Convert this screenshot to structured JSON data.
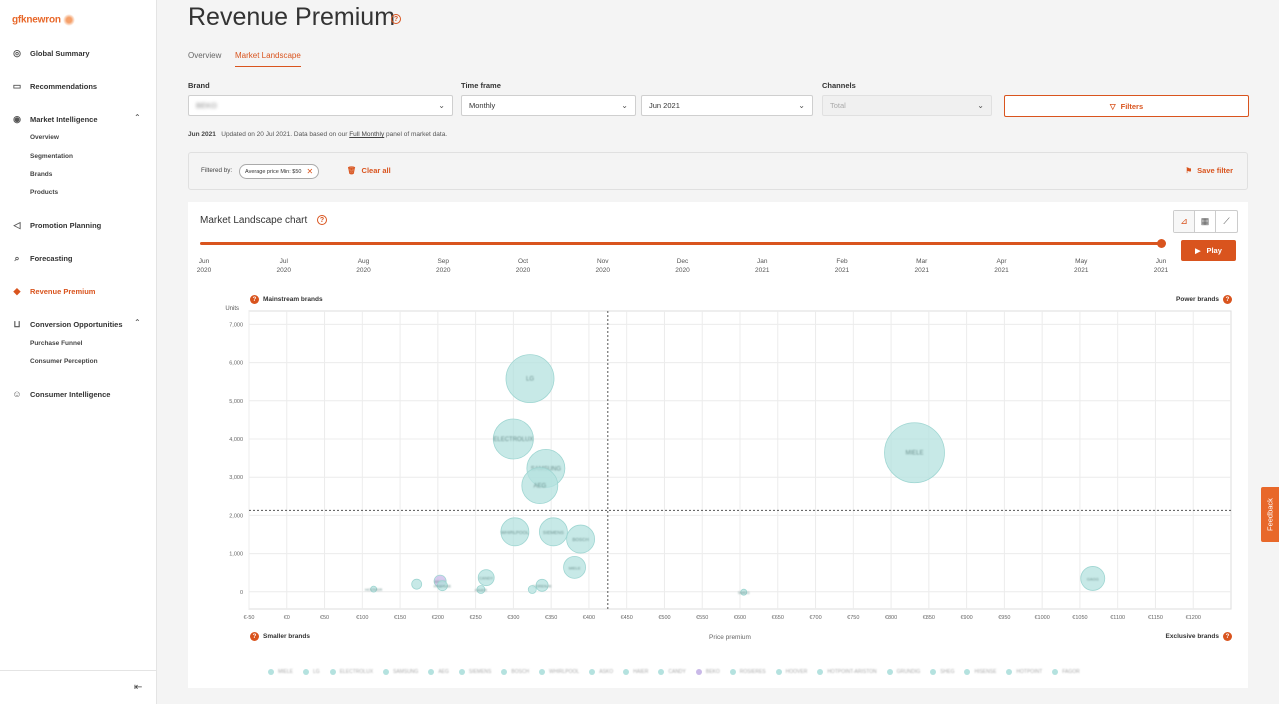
{
  "app": {
    "logo": "gfknewron"
  },
  "sidebar": {
    "items": [
      {
        "label": "Global Summary",
        "icon": "globe-icon"
      },
      {
        "label": "Recommendations",
        "icon": "recommend-icon"
      },
      {
        "label": "Market Intelligence",
        "icon": "target-icon",
        "expanded": true,
        "children": [
          "Overview",
          "Segmentation",
          "Brands",
          "Products"
        ]
      },
      {
        "label": "Promotion Planning",
        "icon": "megaphone-icon"
      },
      {
        "label": "Forecasting",
        "icon": "forecast-icon"
      },
      {
        "label": "Revenue Premium",
        "icon": "diamond-icon",
        "active": true
      },
      {
        "label": "Conversion Opportunities",
        "icon": "cart-icon",
        "expanded": true,
        "children": [
          "Purchase Funnel",
          "Consumer Perception"
        ]
      },
      {
        "label": "Consumer Intelligence",
        "icon": "head-icon"
      }
    ],
    "collapse_icon": "collapse-left-icon"
  },
  "page": {
    "title": "Revenue Premium",
    "tabs": [
      {
        "label": "Overview",
        "active": false
      },
      {
        "label": "Market Landscape",
        "active": true
      }
    ]
  },
  "filters": {
    "brand_label": "Brand",
    "brand_value": "BEKO",
    "timeframe_label": "Time frame",
    "timeframe_value": "Monthly",
    "period_value": "Jun 2021",
    "channels_label": "Channels",
    "channels_value": "Total",
    "filters_button": "Filters"
  },
  "info": {
    "period": "Jun 2021",
    "text_before": "Updated on 20 Jul 2021. Data based on our",
    "link": "Full Monthly",
    "text_after": "panel of market data."
  },
  "filter_bar": {
    "label": "Filtered by:",
    "chip": "Average price Min: $50",
    "clear_all": "Clear all",
    "save_filter": "Save filter"
  },
  "chart_card": {
    "title": "Market Landscape chart",
    "play_label": "Play",
    "timeline_ticks": [
      [
        "Jun",
        "2020"
      ],
      [
        "Jul",
        "2020"
      ],
      [
        "Aug",
        "2020"
      ],
      [
        "Sep",
        "2020"
      ],
      [
        "Oct",
        "2020"
      ],
      [
        "Nov",
        "2020"
      ],
      [
        "Dec",
        "2020"
      ],
      [
        "Jan",
        "2021"
      ],
      [
        "Feb",
        "2021"
      ],
      [
        "Mar",
        "2021"
      ],
      [
        "Apr",
        "2021"
      ],
      [
        "May",
        "2021"
      ],
      [
        "Jun",
        "2021"
      ]
    ],
    "quadrants": {
      "top_left": "Mainstream brands",
      "top_right": "Power brands",
      "bottom_left": "Smaller brands",
      "bottom_right": "Exclusive brands"
    }
  },
  "chart_data": {
    "type": "scatter",
    "xlabel": "Price premium",
    "ylabel": "Units",
    "x_ticks": [
      "€-50",
      "€0",
      "€50",
      "€100",
      "€150",
      "€200",
      "€250",
      "€300",
      "€350",
      "€400",
      "€450",
      "€500",
      "€550",
      "€600",
      "€650",
      "€700",
      "€750",
      "€800",
      "€850",
      "€900",
      "€950",
      "€1000",
      "€1050",
      "€1100",
      "€1150",
      "€1200"
    ],
    "y_ticks": [
      "0",
      "1,000",
      "2,000",
      "3,000",
      "4,000",
      "5,000",
      "6,000",
      "7,000"
    ],
    "xlim": [
      -50,
      1250
    ],
    "ylim": [
      -450,
      7350
    ],
    "ref_x": 425,
    "ref_y": 2130,
    "bubble_color": "#b4e2df",
    "highlight_color": "#c9b9e8",
    "points": [
      {
        "x": 322,
        "y": 5580,
        "size": 24,
        "label": "LG"
      },
      {
        "x": 300,
        "y": 4000,
        "size": 20,
        "label": "ELECTROLUX"
      },
      {
        "x": 343,
        "y": 3230,
        "size": 19,
        "label": "SAMSUNG"
      },
      {
        "x": 335,
        "y": 2780,
        "size": 18,
        "label": "AEG"
      },
      {
        "x": 302,
        "y": 1570,
        "size": 14,
        "label": "WHIRLPOOL"
      },
      {
        "x": 353,
        "y": 1570,
        "size": 14,
        "label": "SIEMENS"
      },
      {
        "x": 389,
        "y": 1380,
        "size": 14,
        "label": "BOSCH"
      },
      {
        "x": 381,
        "y": 640,
        "size": 11,
        "label": "MIELE"
      },
      {
        "x": 831,
        "y": 3640,
        "size": 30,
        "label": "MIELE"
      },
      {
        "x": 1067,
        "y": 350,
        "size": 12,
        "label": "GAGG"
      },
      {
        "x": 264,
        "y": 370,
        "size": 8,
        "label": "CANDY"
      },
      {
        "x": 203,
        "y": 280,
        "size": 6,
        "label": "BEKO",
        "highlight": true
      },
      {
        "x": 206,
        "y": 160,
        "size": 5,
        "label": "HISENSE"
      },
      {
        "x": 172,
        "y": 200,
        "size": 5,
        "label": ""
      },
      {
        "x": 338,
        "y": 170,
        "size": 6,
        "label": "GORENJE"
      },
      {
        "x": 325,
        "y": 60,
        "size": 4,
        "label": ""
      },
      {
        "x": 115,
        "y": 70,
        "size": 3,
        "label": "HOOVER"
      },
      {
        "x": 257,
        "y": 60,
        "size": 4,
        "label": "HAIER"
      },
      {
        "x": 605,
        "y": -10,
        "size": 3,
        "label": "SMEG"
      }
    ],
    "legend": [
      "MIELE",
      "LG",
      "ELECTROLUX",
      "SAMSUNG",
      "AEG",
      "SIEMENS",
      "BOSCH",
      "WHIRLPOOL",
      "ASKO",
      "HAIER",
      "CANDY",
      "BEKO",
      "ROSIERES",
      "HOOVER",
      "HOTPOINT-ARISTON",
      "GRUNDIG",
      "SHEG",
      "HISENSE",
      "HOTPOINT",
      "FAGOR"
    ]
  },
  "feedback": {
    "label": "Feedback"
  },
  "colors": {
    "accent": "#d9541e",
    "bubble": "#b4e2df"
  }
}
